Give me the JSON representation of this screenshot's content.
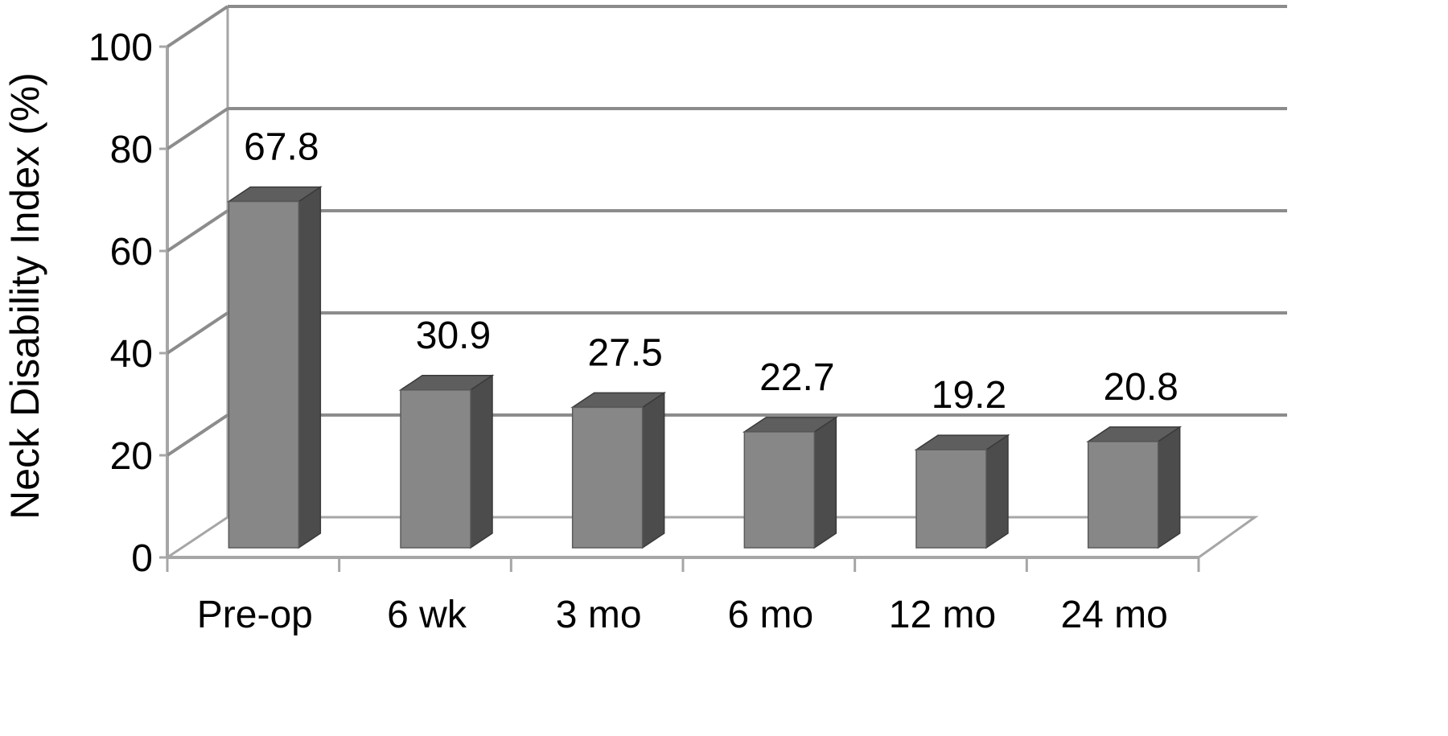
{
  "chart_data": {
    "type": "bar",
    "style": "3d-column",
    "title": "",
    "xlabel": "",
    "ylabel": "Neck Disability Index (%)",
    "categories": [
      "Pre-op",
      "6 wk",
      "3 mo",
      "6 mo",
      "12 mo",
      "24 mo"
    ],
    "values": [
      67.8,
      30.9,
      27.5,
      22.7,
      19.2,
      20.8
    ],
    "data_labels": [
      "67.8",
      "30.9",
      "27.5",
      "22.7",
      "19.2",
      "20.8"
    ],
    "ylim": [
      0,
      100
    ],
    "yticks": [
      0,
      20,
      40,
      60,
      80,
      100
    ],
    "grid": true,
    "legend": "none",
    "colors": {
      "bar_front": "#878787",
      "bar_top": "#5e5e5e",
      "bar_side": "#4c4c4c",
      "gridline": "#8c8c8c",
      "wall_line": "#a6a6a6",
      "text": "#000000"
    }
  }
}
